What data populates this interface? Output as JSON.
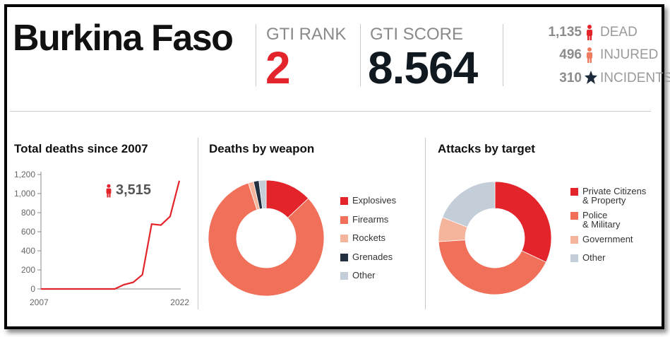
{
  "header": {
    "country": "Burkina Faso",
    "gti_rank_label": "GTI RANK",
    "gti_rank_value": "2",
    "gti_score_label": "GTI SCORE",
    "gti_score_value": "8.564"
  },
  "casualties": [
    {
      "value": "1,135",
      "label": "DEAD",
      "icon": "person-icon",
      "color": "#e3242b"
    },
    {
      "value": "496",
      "label": "INJURED",
      "icon": "person-icon",
      "color": "#f07c60"
    },
    {
      "value": "310",
      "label": "INCIDENTS",
      "icon": "star-icon",
      "color": "#1c2a3a"
    }
  ],
  "colors": {
    "red": "#e3242b",
    "orange": "#f0705a",
    "peach": "#f5b49c",
    "navy": "#22303f",
    "gray": "#c4ced8"
  },
  "chart_data": [
    {
      "type": "line",
      "title": "Total deaths since 2007",
      "x": [
        2007,
        2008,
        2009,
        2010,
        2011,
        2012,
        2013,
        2014,
        2015,
        2016,
        2017,
        2018,
        2019,
        2020,
        2021,
        2022
      ],
      "y": [
        0,
        0,
        0,
        0,
        0,
        0,
        0,
        0,
        0,
        45,
        70,
        150,
        680,
        670,
        760,
        1135
      ],
      "x_tick_labels": [
        "2007",
        "2022"
      ],
      "y_ticks": [
        "0",
        "200",
        "400",
        "600",
        "800",
        "1,000",
        "1,200"
      ],
      "y_tick_values": [
        0,
        200,
        400,
        600,
        800,
        1000,
        1200
      ],
      "ylim": [
        0,
        1200
      ],
      "annotation": "3,515",
      "line_color": "#e3242b"
    },
    {
      "type": "pie",
      "title": "Deaths by weapon",
      "labels": [
        "Explosives",
        "Firearms",
        "Rockets",
        "Grenades",
        "Other"
      ],
      "values": [
        13,
        82,
        1.5,
        1.5,
        2
      ],
      "colors": [
        "#e3242b",
        "#f0705a",
        "#f5b49c",
        "#22303f",
        "#c4ced8"
      ]
    },
    {
      "type": "pie",
      "title": "Attacks by target",
      "labels": [
        "Private Citizens & Property",
        "Police & Military",
        "Government",
        "Other"
      ],
      "values": [
        32,
        42,
        7,
        19
      ],
      "colors": [
        "#e3242b",
        "#f0705a",
        "#f5b49c",
        "#c4ced8"
      ]
    }
  ]
}
